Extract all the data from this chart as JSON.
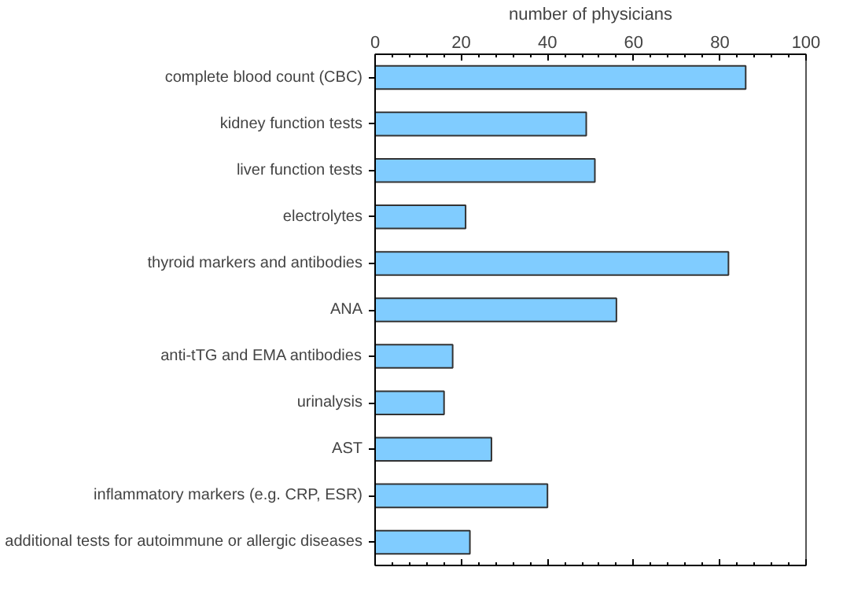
{
  "chart_data": {
    "type": "bar",
    "orientation": "horizontal",
    "xlabel": "number of physicians",
    "categories": [
      "complete blood count (CBC)",
      "kidney function tests",
      "liver function tests",
      "electrolytes",
      "thyroid markers and antibodies",
      "ANA",
      "anti-tTG and EMA antibodies",
      "urinalysis",
      "AST",
      "inflammatory markers (e.g. CRP, ESR)",
      "additional tests for autoimmune or allergic diseases"
    ],
    "values": [
      86,
      49,
      51,
      21,
      82,
      56,
      18,
      16,
      27,
      40,
      22
    ],
    "color": "#80ccff",
    "xlim": [
      0,
      100
    ],
    "xticks": [
      0,
      20,
      40,
      60,
      80,
      100
    ],
    "grid": false
  }
}
